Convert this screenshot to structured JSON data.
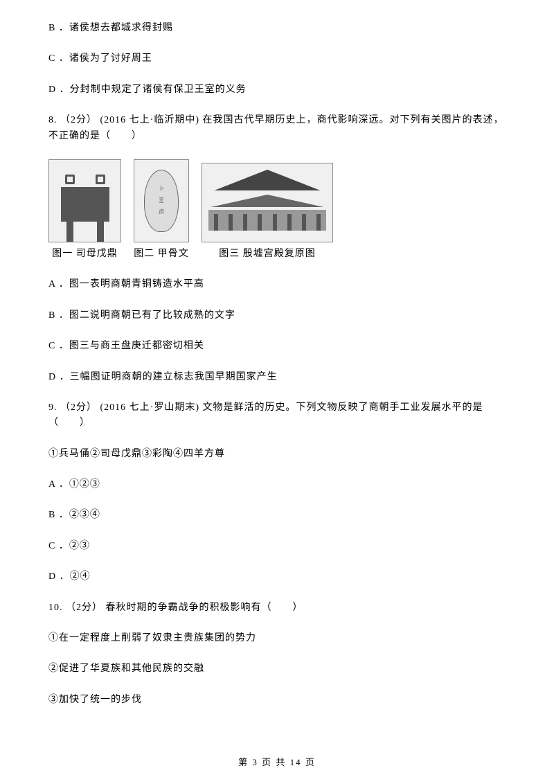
{
  "options_top": [
    "B ．诸侯想去都城求得封赐",
    "C ．诸侯为了讨好周王",
    "D ．分封制中规定了诸侯有保卫王室的义务"
  ],
  "q8": {
    "stem": "8. （2分） (2016 七上·临沂期中) 在我国古代早期历史上，商代影响深远。对下列有关图片的表述，不正确的是（　　）",
    "figures": [
      {
        "caption": "图一  司母戊鼎"
      },
      {
        "caption": "图二  甲骨文"
      },
      {
        "caption": "图三  殷墟宫殿复原图"
      }
    ],
    "options": [
      "A ．图一表明商朝青铜铸造水平高",
      "B ．图二说明商朝已有了比较成熟的文字",
      "C ．图三与商王盘庚迁都密切相关",
      "D ．三幅图证明商朝的建立标志我国早期国家产生"
    ]
  },
  "q9": {
    "stem": "9. （2分） (2016 七上·罗山期末) 文物是鲜活的历史。下列文物反映了商朝手工业发展水平的是（　　）",
    "list": "①兵马俑②司母戊鼎③彩陶④四羊方尊",
    "options": [
      "A ．①②③",
      "B ．②③④",
      "C ．②③",
      "D ．②④"
    ]
  },
  "q10": {
    "stem": "10. （2分） 春秋时期的争霸战争的积极影响有（　　）",
    "items": [
      "①在一定程度上削弱了奴隶主贵族集团的势力",
      "②促进了华夏族和其他民族的交融",
      "③加快了统一的步伐"
    ]
  },
  "footer": "第 3 页 共 14 页"
}
